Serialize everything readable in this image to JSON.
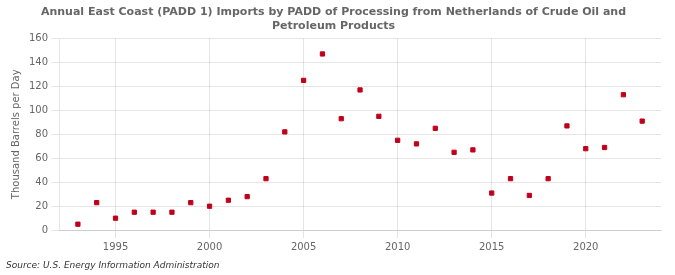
{
  "chart_data": {
    "type": "scatter",
    "title": "Annual East Coast (PADD 1) Imports by PADD of Processing from Netherlands of Crude Oil and\nPetroleum Products",
    "ylabel": "Thousand Barrels per Day",
    "annotations": [
      "Source: U.S. Energy Information Administration"
    ],
    "x": [
      1993,
      1994,
      1995,
      1996,
      1997,
      1998,
      1999,
      2000,
      2001,
      2002,
      2003,
      2004,
      2005,
      2006,
      2007,
      2008,
      2009,
      2010,
      2011,
      2012,
      2013,
      2014,
      2015,
      2016,
      2017,
      2018,
      2019,
      2020,
      2021,
      2022,
      2023
    ],
    "values": [
      5,
      23,
      10,
      15,
      15,
      15,
      23,
      20,
      25,
      28,
      43,
      82,
      125,
      147,
      93,
      117,
      95,
      75,
      72,
      85,
      65,
      67,
      31,
      43,
      29,
      43,
      87,
      68,
      69,
      113,
      91
    ],
    "color": "#c0001a",
    "marker": "square",
    "xlim": [
      1992,
      2024
    ],
    "xticks": [
      1995,
      2000,
      2005,
      2010,
      2015,
      2020
    ],
    "ylim": [
      0,
      160
    ],
    "yticks": [
      0,
      20,
      40,
      60,
      80,
      100,
      120,
      140,
      160
    ],
    "grid": true
  }
}
